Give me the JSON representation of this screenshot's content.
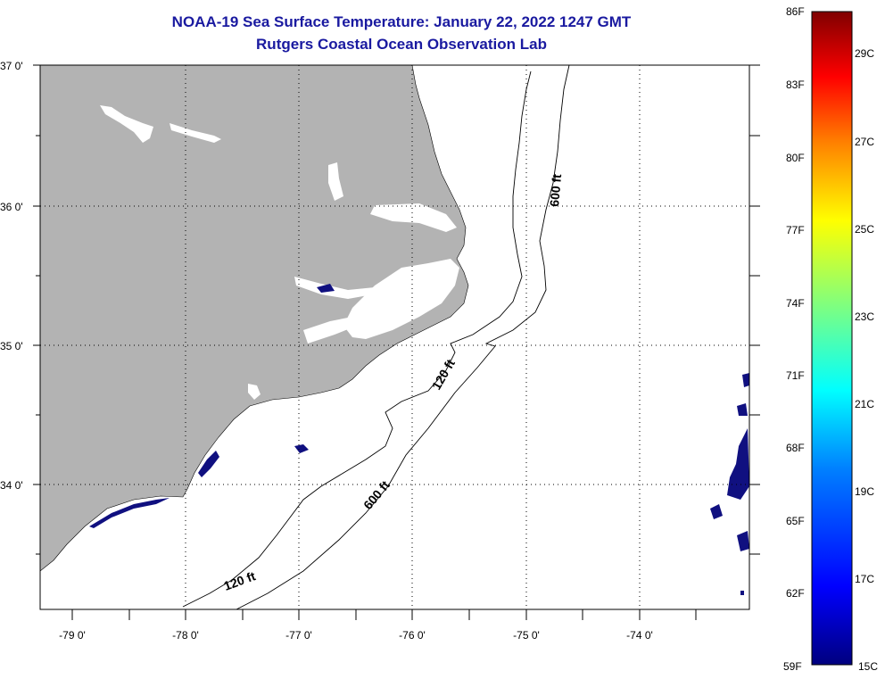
{
  "title_line1": "NOAA-19 Sea Surface Temperature:  January 22, 2022 1247 GMT",
  "title_line2": "Rutgers Coastal Ocean Observation Lab",
  "lat_labels": [
    "37 0'",
    "36 0'",
    "35 0'",
    "34 0'"
  ],
  "lon_labels": [
    "-79 0'",
    "-78 0'",
    "-77 0'",
    "-76 0'",
    "-75 0'",
    "-74 0'"
  ],
  "contours": {
    "c120_upper": "120 ft",
    "c600_upper": "600 ft",
    "c600_lower": "600 ft",
    "c120_lower": "120 ft"
  },
  "colorbar": {
    "fahrenheit": [
      "86F",
      "83F",
      "80F",
      "77F",
      "74F",
      "71F",
      "68F",
      "65F",
      "62F",
      "59F"
    ],
    "celsius": [
      "29C",
      "27C",
      "25C",
      "23C",
      "21C",
      "19C",
      "17C",
      "15C"
    ]
  },
  "colors": {
    "land": "#b3b3b3",
    "cold_water": "#101080",
    "title": "#1a1aa0"
  }
}
